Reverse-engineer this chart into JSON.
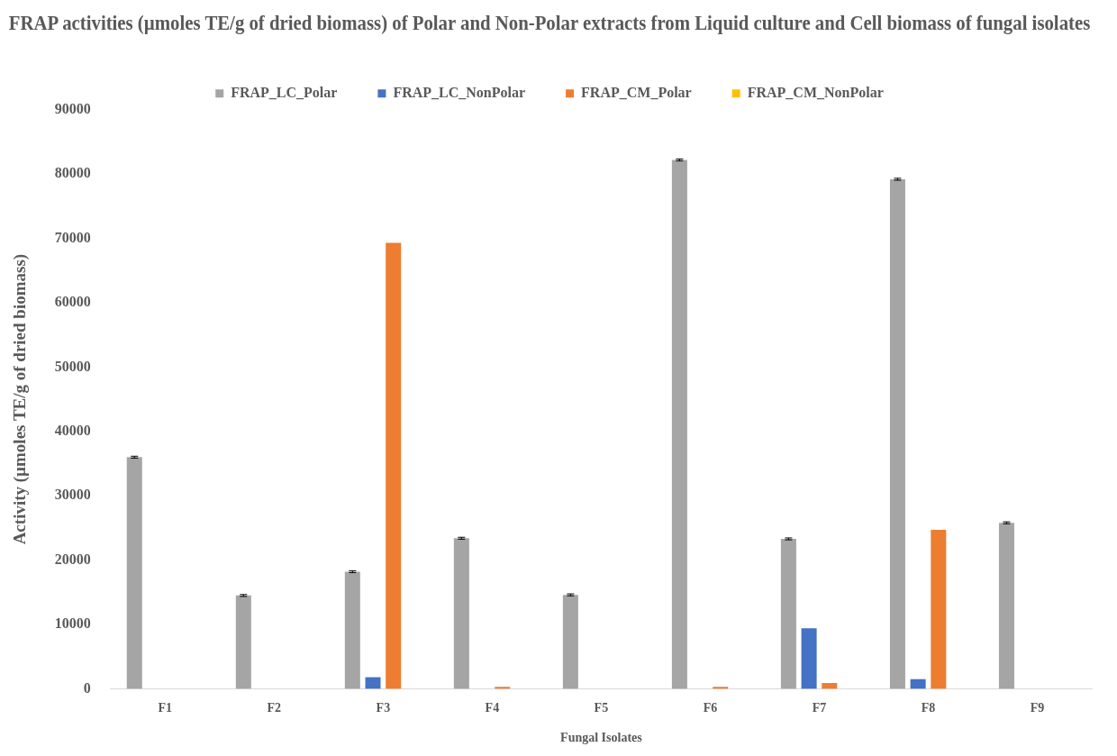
{
  "chart_data": {
    "type": "bar",
    "title": "FRAP activities (µmoles TE/g of dried biomass) of Polar and Non-Polar extracts from Liquid culture and Cell biomass of fungal isolates",
    "xlabel": "Fungal Isolates",
    "ylabel": "Activity (µmoles TE/g of dried biomass)",
    "categories": [
      "F1",
      "F2",
      "F3",
      "F4",
      "F5",
      "F6",
      "F7",
      "F8",
      "F9"
    ],
    "series": [
      {
        "name": "FRAP_LC_Polar",
        "color": "#a5a5a5",
        "values": [
          36000,
          14500,
          18200,
          23400,
          14600,
          82200,
          23300,
          79200,
          25800
        ],
        "errors": [
          150,
          150,
          150,
          150,
          150,
          150,
          150,
          150,
          150
        ]
      },
      {
        "name": "FRAP_LC_NonPolar",
        "color": "#4472c4",
        "values": [
          0,
          0,
          1800,
          0,
          0,
          0,
          9400,
          1500,
          0
        ]
      },
      {
        "name": "FRAP_CM_Polar",
        "color": "#ed7d31",
        "values": [
          0,
          0,
          69300,
          300,
          0,
          300,
          900,
          24700,
          0
        ]
      },
      {
        "name": "FRAP_CM_NonPolar",
        "color": "#ffc000",
        "values": [
          0,
          0,
          0,
          0,
          0,
          0,
          0,
          0,
          0
        ]
      }
    ],
    "ylim": [
      0,
      90000
    ],
    "yticks": [
      0,
      10000,
      20000,
      30000,
      40000,
      50000,
      60000,
      70000,
      80000,
      90000
    ],
    "grid": false,
    "legend": "top"
  }
}
